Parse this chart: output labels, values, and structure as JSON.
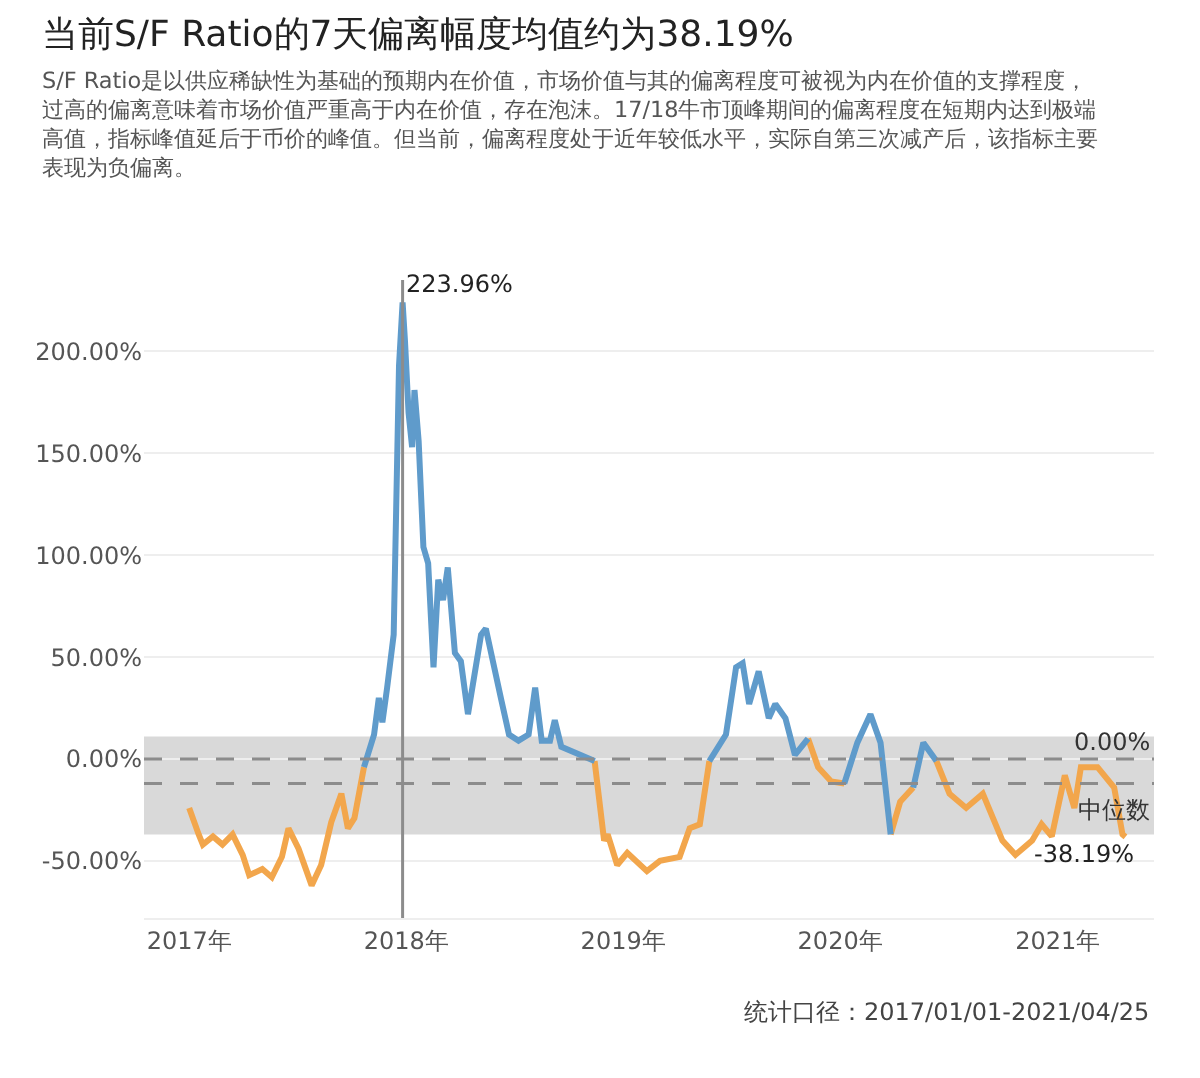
{
  "chart_data": {
    "type": "line",
    "title": "当前S/F Ratio的7天偏离幅度均值约为38.19%",
    "subtitle": "S/F Ratio是以供应稀缺性为基础的预期内在价值，市场价值与其的偏离程度可被视为内在价值的支撑程度，过高的偏离意味着市场价值严重高于内在价值，存在泡沫。17/18牛市顶峰期间的偏离程度在短期内达到极端高值，指标峰值延后于币价的峰值。但当前，偏离程度处于近年较低水平，实际自第三次减产后，该指标主要表现为负偏离。",
    "x": [
      "2017-01-01",
      "2017-01-17",
      "2017-01-24",
      "2017-02-10",
      "2017-02-26",
      "2017-03-15",
      "2017-04-01",
      "2017-04-12",
      "2017-05-04",
      "2017-05-20",
      "2017-06-06",
      "2017-06-17",
      "2017-07-04",
      "2017-07-26",
      "2017-08-11",
      "2017-08-28",
      "2017-09-14",
      "2017-09-25",
      "2017-10-06",
      "2017-10-22",
      "2017-11-08",
      "2017-11-16",
      "2017-11-22",
      "2017-11-30",
      "2017-12-11",
      "2017-12-20",
      "2017-12-26",
      "2017-12-30",
      "2018-01-05",
      "2018-01-11",
      "2018-01-15",
      "2018-01-22",
      "2018-01-30",
      "2018-02-07",
      "2018-02-16",
      "2018-02-24",
      "2018-03-04",
      "2018-03-12",
      "2018-03-24",
      "2018-04-03",
      "2018-04-15",
      "2018-05-07",
      "2018-05-15",
      "2018-06-10",
      "2018-06-23",
      "2018-07-09",
      "2018-07-26",
      "2018-08-06",
      "2018-08-17",
      "2018-08-31",
      "2018-09-08",
      "2018-09-19",
      "2018-11-14",
      "2018-11-30",
      "2018-12-06",
      "2018-12-22",
      "2019-01-08",
      "2019-02-10",
      "2019-03-04",
      "2019-04-06",
      "2019-04-23",
      "2019-05-10",
      "2019-05-26",
      "2019-06-23",
      "2019-07-10",
      "2019-07-21",
      "2019-08-01",
      "2019-08-17",
      "2019-09-03",
      "2019-09-14",
      "2019-10-01",
      "2019-10-17",
      "2019-11-08",
      "2019-11-25",
      "2019-12-17",
      "2020-01-08",
      "2020-01-30",
      "2020-02-21",
      "2020-03-09",
      "2020-03-26",
      "2020-04-11",
      "2020-05-03",
      "2020-05-20",
      "2020-06-11",
      "2020-07-03",
      "2020-07-31",
      "2020-08-28",
      "2020-09-30",
      "2020-10-22",
      "2020-11-19",
      "2020-12-05",
      "2020-12-22",
      "2021-01-13",
      "2021-01-29",
      "2021-02-09",
      "2021-03-09",
      "2021-04-06",
      "2021-04-20",
      "2021-04-25"
    ],
    "series": [
      {
        "color": "#f2a64c",
        "values": [
          -24,
          -37,
          -42,
          -38,
          -42,
          -37,
          -47,
          -57,
          -54,
          -58,
          -48,
          -34,
          -44,
          -62,
          -52,
          -31,
          -17,
          -34,
          -29,
          -4,
          null,
          null,
          null,
          null,
          null,
          null,
          null,
          null,
          null,
          null,
          null,
          null,
          null,
          null,
          null,
          null,
          null,
          null,
          null,
          null,
          null,
          null,
          null,
          null,
          null,
          null,
          null,
          null,
          null,
          null,
          null,
          null,
          -1,
          -40,
          -37,
          -52,
          -46,
          -55,
          -50,
          -48,
          -34,
          -32,
          -1,
          null,
          null,
          null,
          null,
          null,
          null,
          null,
          null,
          null,
          10,
          -4,
          -11,
          -12,
          null,
          null,
          null,
          -37,
          -21,
          -14,
          null,
          -1,
          -17,
          -24,
          -17,
          -40,
          -47,
          -40,
          -32,
          -38,
          -8,
          -24,
          -4,
          -4,
          -14,
          -37,
          -38.19
        ]
      },
      {
        "color": "#5f9bcb",
        "values": [
          null,
          null,
          null,
          null,
          null,
          null,
          null,
          null,
          null,
          null,
          null,
          null,
          null,
          null,
          null,
          null,
          null,
          null,
          null,
          -4,
          12,
          30,
          18,
          35,
          61,
          193,
          223.96,
          205,
          170,
          153,
          181,
          156,
          104,
          96,
          45,
          88,
          78,
          94,
          52,
          48,
          22,
          61,
          64,
          29,
          12,
          9,
          12,
          35,
          9,
          9,
          19,
          6,
          -1,
          null,
          null,
          null,
          null,
          null,
          null,
          null,
          null,
          null,
          -1,
          12,
          45,
          47,
          27,
          43,
          20,
          27,
          20,
          2,
          10,
          null,
          null,
          -12,
          8,
          22,
          8,
          -37,
          null,
          -14,
          8,
          -1,
          null,
          null,
          null,
          null,
          null,
          null,
          null,
          null,
          null,
          null,
          null,
          null,
          null,
          null,
          null
        ]
      }
    ],
    "xlim": [
      "2016-10-17",
      "2021-06-12"
    ],
    "xticks": [
      {
        "value": "2017-01-01",
        "label": "2017年"
      },
      {
        "value": "2018-01-01",
        "label": "2018年"
      },
      {
        "value": "2019-01-01",
        "label": "2019年"
      },
      {
        "value": "2020-01-01",
        "label": "2020年"
      },
      {
        "value": "2021-01-01",
        "label": "2021年"
      }
    ],
    "ylim": [
      -78,
      235
    ],
    "yticks": [
      {
        "value": -50,
        "label": "-50.00%"
      },
      {
        "value": 0,
        "label": "0.00%"
      },
      {
        "value": 50,
        "label": "50.00%"
      },
      {
        "value": 100,
        "label": "100.00%"
      },
      {
        "value": 150,
        "label": "150.00%"
      },
      {
        "value": 200,
        "label": "200.00%"
      }
    ],
    "bands": [
      {
        "axis": "y",
        "from": -37,
        "to": 11,
        "color": "#d9d9d9"
      }
    ],
    "ref_lines": [
      {
        "axis": "y",
        "value": 0,
        "label": "0.00%",
        "color": "#8c8c8c",
        "line_style": "dashed"
      },
      {
        "axis": "y",
        "value": -12,
        "label": "中位数",
        "color": "#8c8c8c",
        "line_style": "dashed"
      },
      {
        "axis": "x",
        "value": "2017-12-26",
        "color": "#8c8c8c",
        "line_style": "solid"
      }
    ],
    "annotations": [
      {
        "text": "223.96%",
        "x": "2017-12-26",
        "y": 223.96
      },
      {
        "text": "-38.19%",
        "x": "2021-04-25",
        "y": -38.19
      },
      "统计口径：2017/01/01-2021/04/25"
    ],
    "grid": "y",
    "line_style": "solid",
    "marker": "none"
  }
}
